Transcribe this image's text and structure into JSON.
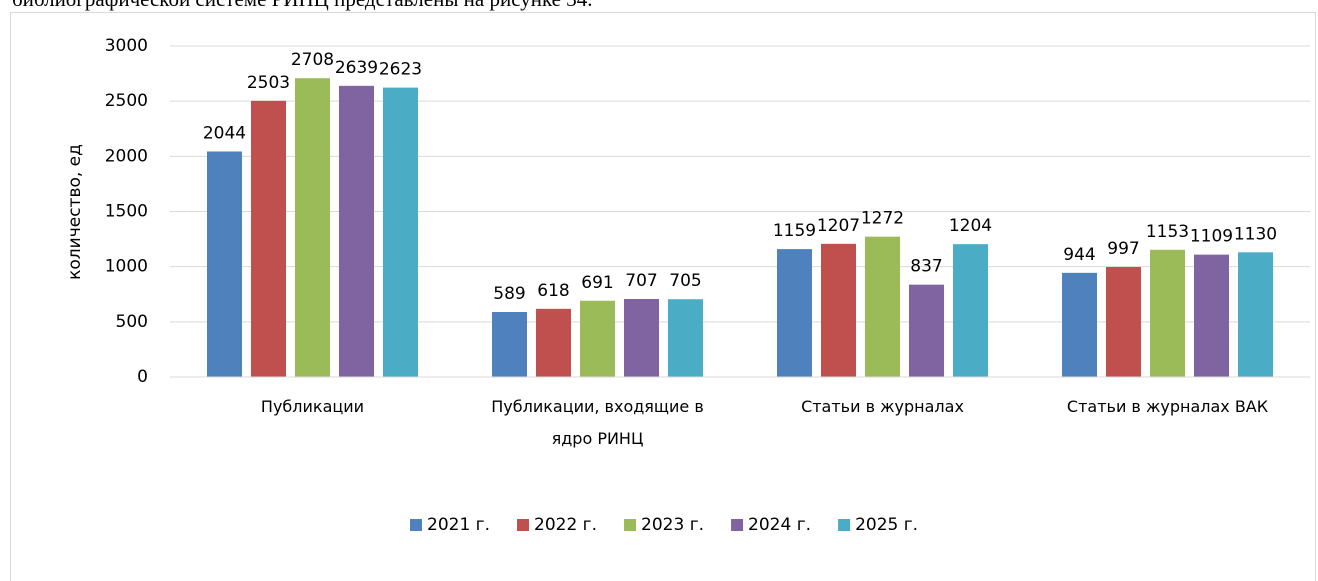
{
  "document_text": "библиографической системе РИНЦ представлены на рисунке 34.",
  "chart_data": {
    "type": "bar",
    "y_label": "количество, ед",
    "categories": [
      "Публикации",
      "Публикации, входящие в ядро РИНЦ",
      "Статьи в журналах",
      "Статьи в журналах ВАК"
    ],
    "series": [
      {
        "name": "2021 г.",
        "color": "#4f81bd",
        "values": [
          2044,
          589,
          1159,
          944
        ]
      },
      {
        "name": "2022 г.",
        "color": "#c0504d",
        "values": [
          2503,
          618,
          1207,
          997
        ]
      },
      {
        "name": "2023 г.",
        "color": "#9bbb59",
        "values": [
          2708,
          691,
          1272,
          1153
        ]
      },
      {
        "name": "2024 г.",
        "color": "#8064a2",
        "values": [
          2639,
          707,
          837,
          1109
        ]
      },
      {
        "name": "2025 г.",
        "color": "#4bacc6",
        "values": [
          2623,
          705,
          1204,
          1130
        ]
      }
    ],
    "ylim": [
      0,
      3000
    ],
    "yticks": [
      0,
      500,
      1000,
      1500,
      2000,
      2500,
      3000
    ],
    "grid": true,
    "legend": "bottom"
  }
}
